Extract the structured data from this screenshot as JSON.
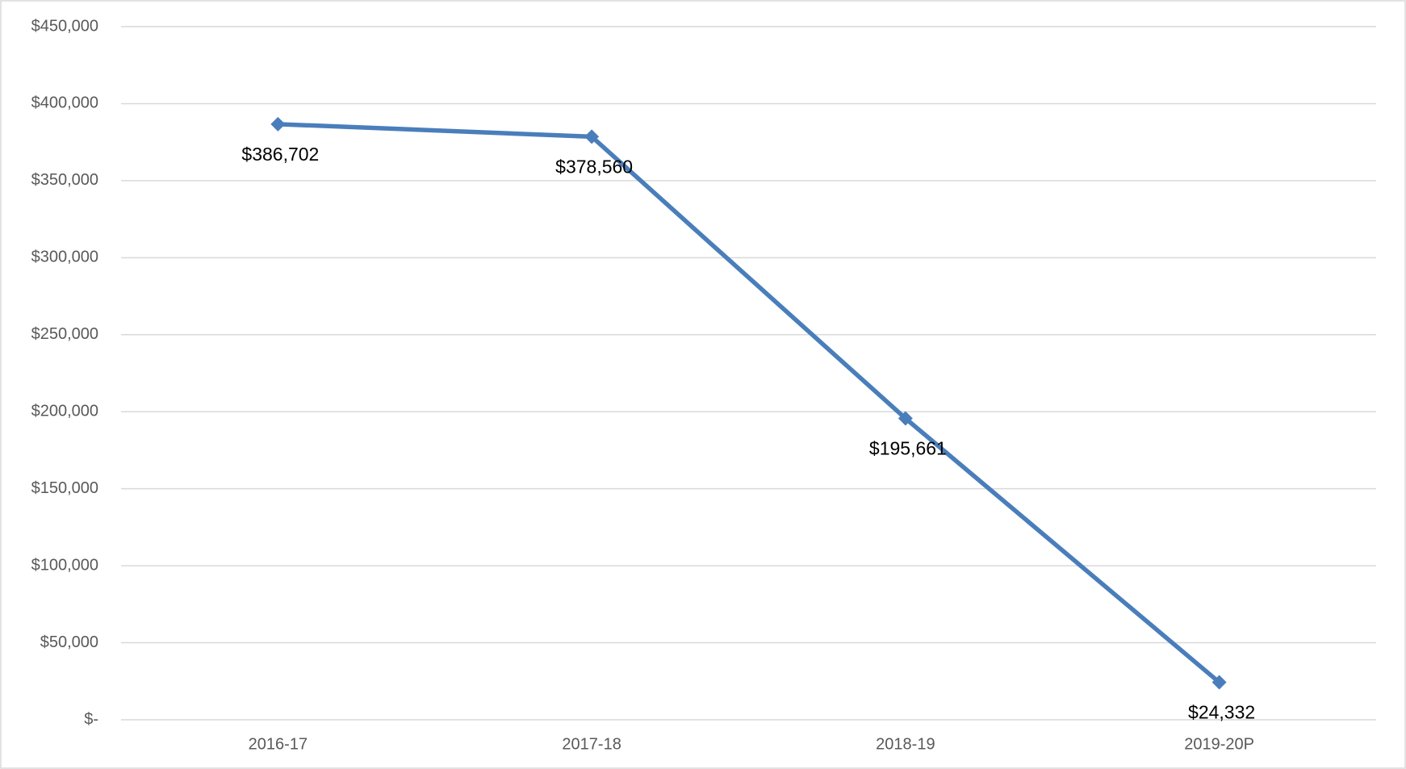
{
  "chart_data": {
    "type": "line",
    "categories": [
      "2016-17",
      "2017-18",
      "2018-19",
      "2019-20P"
    ],
    "series": [
      {
        "name": "Amount",
        "color": "#4a7ebb",
        "values": [
          386702,
          378560,
          195661,
          24332
        ],
        "value_labels": [
          "$386,702",
          "$378,560",
          "$195,661",
          "$24,332"
        ]
      }
    ],
    "ylim": [
      0,
      450000
    ],
    "yticks": [
      {
        "value": 0,
        "label": "$-"
      },
      {
        "value": 50000,
        "label": "$50,000"
      },
      {
        "value": 100000,
        "label": "$100,000"
      },
      {
        "value": 150000,
        "label": "$150,000"
      },
      {
        "value": 200000,
        "label": "$200,000"
      },
      {
        "value": 250000,
        "label": "$250,000"
      },
      {
        "value": 300000,
        "label": "$300,000"
      },
      {
        "value": 350000,
        "label": "$350,000"
      },
      {
        "value": 400000,
        "label": "$400,000"
      },
      {
        "value": 450000,
        "label": "$450,000"
      }
    ],
    "grid": true
  }
}
